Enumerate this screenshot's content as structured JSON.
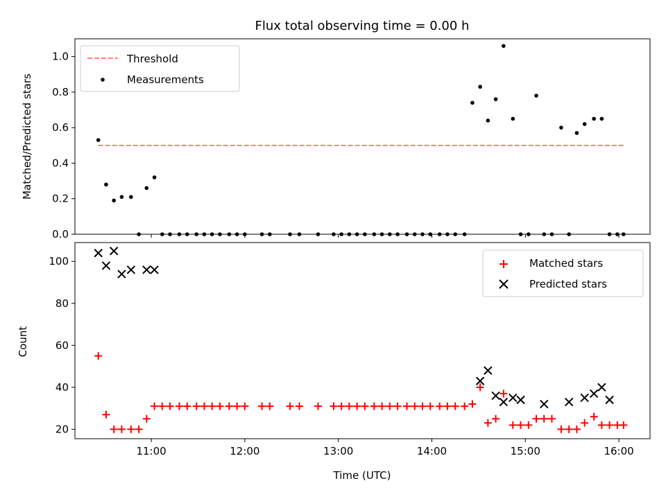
{
  "figure": {
    "title": "Flux total observing time = 0.00 h",
    "xlabel": "Time (UTC)"
  },
  "chart_data": [
    {
      "type": "scatter",
      "ylabel": "Matched/Predicted stars",
      "xlim": [
        "10:11",
        "16:20"
      ],
      "ylim": [
        0,
        1.1
      ],
      "yticks": [
        0.0,
        0.2,
        0.4,
        0.6,
        0.8,
        1.0
      ],
      "ytick_labels": [
        "0.0",
        "0.2",
        "0.4",
        "0.6",
        "0.8",
        "1.0"
      ],
      "xticks": [
        "11:00",
        "12:00",
        "13:00",
        "14:00",
        "15:00",
        "16:00"
      ],
      "grid": false,
      "legend": {
        "position": "top-left",
        "entries": [
          "Threshold",
          "Measurements"
        ]
      },
      "series": [
        {
          "name": "Threshold",
          "style": "dashed-line",
          "color": "#ff7f7f",
          "x": [
            "10:26",
            "16:03"
          ],
          "y": [
            0.5,
            0.5
          ]
        },
        {
          "name": "Measurements",
          "style": "dots",
          "color": "#000000",
          "x": [
            "10:26",
            "10:31",
            "10:36",
            "10:41",
            "10:47",
            "10:52",
            "10:57",
            "11:02",
            "11:07",
            "11:12",
            "11:18",
            "11:23",
            "11:29",
            "11:34",
            "11:39",
            "11:44",
            "11:50",
            "11:55",
            "12:00",
            "12:11",
            "12:16",
            "12:29",
            "12:35",
            "12:47",
            "12:57",
            "13:02",
            "13:07",
            "13:12",
            "13:17",
            "13:23",
            "13:28",
            "13:33",
            "13:38",
            "13:44",
            "13:49",
            "13:54",
            "13:59",
            "14:05",
            "14:10",
            "14:15",
            "14:21",
            "14:26",
            "14:31",
            "14:36",
            "14:41",
            "14:46",
            "14:52",
            "14:57",
            "15:02",
            "15:07",
            "15:12",
            "15:17",
            "15:23",
            "15:28",
            "15:33",
            "15:38",
            "15:44",
            "15:49",
            "15:54",
            "15:59",
            "16:03"
          ],
          "y": [
            0.53,
            0.28,
            0.19,
            0.21,
            0.21,
            0.0,
            0.26,
            0.32,
            0.0,
            0.0,
            0.0,
            0.0,
            0.0,
            0.0,
            0.0,
            0.0,
            0.0,
            0.0,
            0.0,
            0.0,
            0.0,
            0.0,
            0.0,
            0.0,
            0.0,
            0.0,
            0.0,
            0.0,
            0.0,
            0.0,
            0.0,
            0.0,
            0.0,
            0.0,
            0.0,
            0.0,
            0.0,
            0.0,
            0.0,
            0.0,
            0.0,
            0.74,
            0.83,
            0.64,
            0.76,
            1.06,
            0.65,
            0.0,
            0.0,
            0.78,
            0.0,
            0.0,
            0.6,
            0.0,
            0.57,
            0.62,
            0.65,
            0.65,
            0.0,
            0.0,
            0.0
          ]
        }
      ]
    },
    {
      "type": "scatter",
      "ylabel": "Count",
      "xlim": [
        "10:11",
        "16:20"
      ],
      "ylim": [
        15.5,
        109
      ],
      "yticks": [
        20,
        40,
        60,
        80,
        100
      ],
      "ytick_labels": [
        "20",
        "40",
        "60",
        "80",
        "100"
      ],
      "xticks": [
        "11:00",
        "12:00",
        "13:00",
        "14:00",
        "15:00",
        "16:00"
      ],
      "xtick_labels": [
        "11:00",
        "12:00",
        "13:00",
        "14:00",
        "15:00",
        "16:00"
      ],
      "grid": false,
      "legend": {
        "position": "top-right",
        "entries": [
          "Matched stars",
          "Predicted stars"
        ]
      },
      "series": [
        {
          "name": "Matched stars",
          "marker": "plus",
          "color": "#ff0000",
          "x": [
            "10:26",
            "10:31",
            "10:36",
            "10:41",
            "10:47",
            "10:52",
            "10:57",
            "11:02",
            "11:07",
            "11:12",
            "11:18",
            "11:23",
            "11:29",
            "11:34",
            "11:39",
            "11:44",
            "11:50",
            "11:55",
            "12:00",
            "12:11",
            "12:16",
            "12:29",
            "12:35",
            "12:47",
            "12:57",
            "13:02",
            "13:07",
            "13:12",
            "13:17",
            "13:23",
            "13:28",
            "13:33",
            "13:38",
            "13:44",
            "13:49",
            "13:54",
            "13:59",
            "14:05",
            "14:10",
            "14:15",
            "14:21",
            "14:26",
            "14:31",
            "14:36",
            "14:41",
            "14:46",
            "14:52",
            "14:57",
            "15:02",
            "15:07",
            "15:12",
            "15:17",
            "15:23",
            "15:28",
            "15:33",
            "15:38",
            "15:44",
            "15:49",
            "15:54",
            "15:59",
            "16:03"
          ],
          "y": [
            55,
            27,
            20,
            20,
            20,
            20,
            25,
            31,
            31,
            31,
            31,
            31,
            31,
            31,
            31,
            31,
            31,
            31,
            31,
            31,
            31,
            31,
            31,
            31,
            31,
            31,
            31,
            31,
            31,
            31,
            31,
            31,
            31,
            31,
            31,
            31,
            31,
            31,
            31,
            31,
            31,
            32,
            40,
            23,
            25,
            37,
            22,
            22,
            22,
            25,
            25,
            25,
            20,
            20,
            20,
            23,
            26,
            22,
            22,
            22,
            22
          ]
        },
        {
          "name": "Predicted stars",
          "marker": "x",
          "color": "#000000",
          "x": [
            "10:26",
            "10:31",
            "10:36",
            "10:41",
            "10:47",
            "10:57",
            "11:02",
            "14:31",
            "14:36",
            "14:41",
            "14:46",
            "14:52",
            "14:57",
            "15:12",
            "15:28",
            "15:38",
            "15:44",
            "15:49",
            "15:54"
          ],
          "y": [
            104,
            98,
            105,
            94,
            96,
            96,
            96,
            43,
            48,
            36,
            33,
            35,
            34,
            32,
            33,
            35,
            37,
            40,
            34
          ]
        }
      ]
    }
  ]
}
